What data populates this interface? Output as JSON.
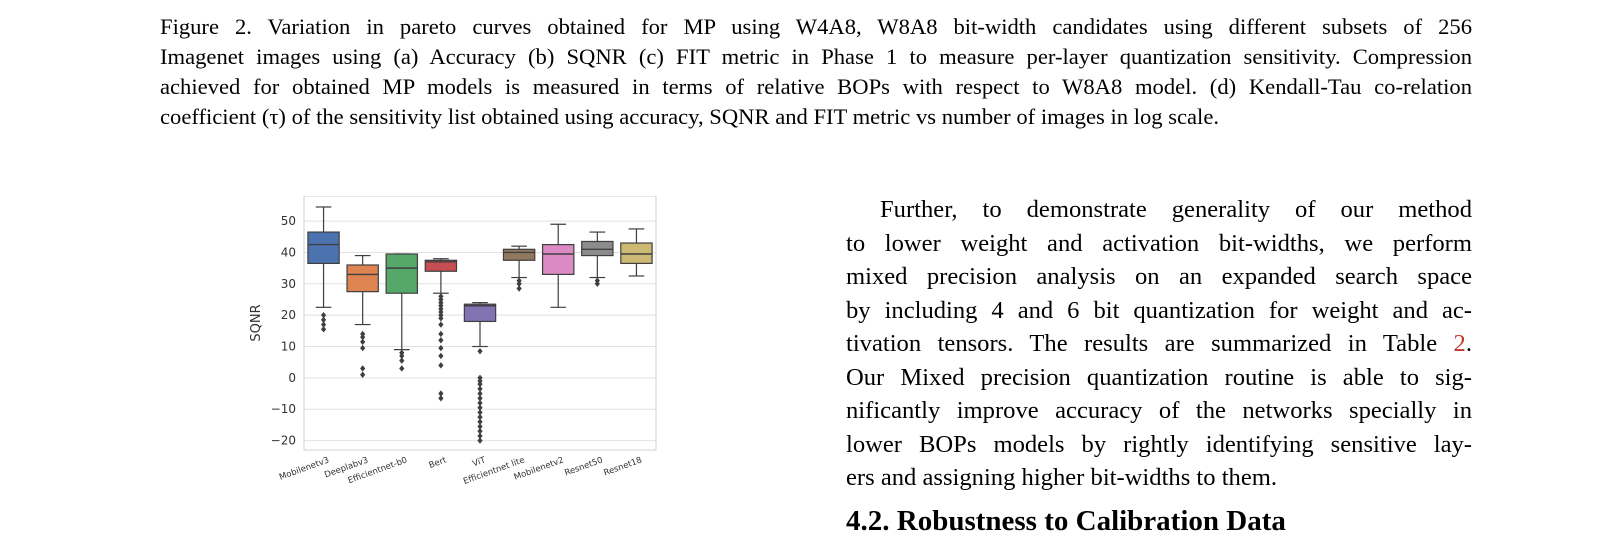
{
  "caption": {
    "lines": [
      "Figure 2.  Variation in pareto curves obtained for MP using W4A8, W8A8 bit-width candidates using different subsets of 256",
      "Imagenet images using (a) Accuracy (b) SQNR (c) FIT metric in Phase 1 to measure per-layer quantization sensitivity. Compression",
      "achieved for obtained MP models is measured in terms of relative BOPs with respect to W8A8 model. (d) Kendall-Tau co-relation",
      "coefficient (τ) of the sensitivity list obtained using accuracy, SQNR and FIT metric vs number of images in log scale."
    ]
  },
  "body": {
    "lines": [
      "Further, to demonstrate generality of our method",
      "to lower weight and activation bit-widths, we perform",
      "mixed precision analysis on an expanded search space",
      "by including 4 and 6 bit quantization for weight and ac-",
      "tivation tensors.  The results are summarized in Table ",
      "Our Mixed precision quantization routine is able to sig-",
      "nificantly improve accuracy of the networks specially in",
      "lower BOPs models by rightly identifying sensitive lay-",
      "ers and assigning higher bit-widths to them."
    ],
    "table_ref": "2",
    "after_ref": "."
  },
  "section_heading": "4.2. Robustness to Calibration Data",
  "chart_data": {
    "type": "box",
    "ylabel": "SQNR",
    "xlabel": "",
    "ylim": [
      -23,
      58
    ],
    "yticks": [
      50,
      40,
      30,
      20,
      10,
      0,
      -10,
      -20
    ],
    "ytick_labels": [
      "50",
      "40",
      "30",
      "20",
      "10",
      "0",
      "−10",
      "−20"
    ],
    "grid": true,
    "categories": [
      "Mobilenetv3",
      "Deeplabv3",
      "Efficientnet-b0",
      "Bert",
      "ViT",
      "Efficientnet lite",
      "Mobilenetv2",
      "Resnet50",
      "Resnet18"
    ],
    "boxes": [
      {
        "name": "Mobilenetv3",
        "color": "#4c72b0",
        "whisker_low": 22.5,
        "q1": 36.5,
        "median": 42.5,
        "q3": 46.5,
        "whisker_high": 54.5,
        "outliers": [
          20,
          18.5,
          17,
          15.5
        ]
      },
      {
        "name": "Deeplabv3",
        "color": "#dd8452",
        "whisker_low": 17,
        "q1": 27.5,
        "median": 33,
        "q3": 36,
        "whisker_high": 39,
        "outliers": [
          14,
          13,
          11.5,
          9.5,
          3,
          1
        ]
      },
      {
        "name": "Efficientnet-b0",
        "color": "#55a868",
        "whisker_low": 9,
        "q1": 27,
        "median": 35,
        "q3": 39.5,
        "whisker_high": 39.5,
        "outliers": [
          8,
          7,
          5.5,
          3
        ]
      },
      {
        "name": "Bert",
        "color": "#c44e52",
        "whisker_low": 27,
        "q1": 34,
        "median": 37,
        "q3": 37.5,
        "whisker_high": 38,
        "outliers": [
          26,
          25,
          24,
          23,
          22,
          21,
          20,
          19,
          17,
          14,
          12,
          9.5,
          7,
          4,
          -5,
          -6.5
        ]
      },
      {
        "name": "ViT",
        "color": "#8172b3",
        "whisker_low": 10,
        "q1": 18,
        "median": 23,
        "q3": 23.5,
        "whisker_high": 24,
        "outliers": [
          8.5,
          0,
          -1,
          -2,
          -3.5,
          -5,
          -6.5,
          -8,
          -9.5,
          -11,
          -12.5,
          -14,
          -15.5,
          -17,
          -18.5,
          -20
        ]
      },
      {
        "name": "Efficientnet lite",
        "color": "#937860",
        "whisker_low": 32,
        "q1": 37.5,
        "median": 40,
        "q3": 41,
        "whisker_high": 42,
        "outliers": [
          31,
          30,
          28.5
        ]
      },
      {
        "name": "Mobilenetv2",
        "color": "#da8bc3",
        "whisker_low": 22.5,
        "q1": 33,
        "median": 39.5,
        "q3": 42.5,
        "whisker_high": 49,
        "outliers": []
      },
      {
        "name": "Resnet50",
        "color": "#8c8c8c",
        "whisker_low": 32,
        "q1": 39,
        "median": 41,
        "q3": 43.5,
        "whisker_high": 46.5,
        "outliers": [
          31,
          30
        ]
      },
      {
        "name": "Resnet18",
        "color": "#ccb974",
        "whisker_low": 32.5,
        "q1": 36.5,
        "median": 39.5,
        "q3": 43,
        "whisker_high": 47.5,
        "outliers": []
      }
    ]
  }
}
